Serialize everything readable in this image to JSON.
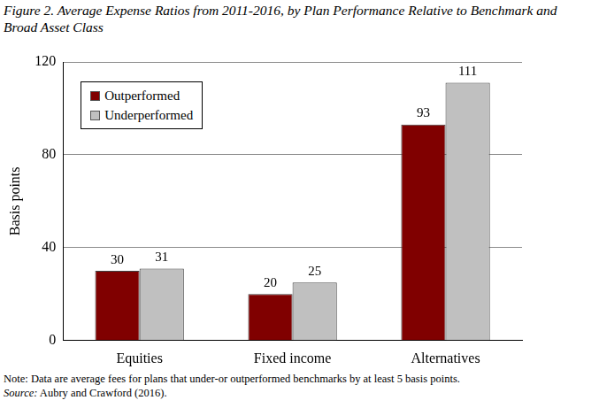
{
  "chart_data": {
    "type": "bar",
    "title": "Figure 2. Average Expense Ratios from 2011-2016, by Plan Performance Relative to Benchmark and Broad Asset Class",
    "y_label": "Basis points",
    "categories": [
      "Equities",
      "Fixed income",
      "Alternatives"
    ],
    "series": [
      {
        "name": "Outperformed",
        "color": "#800000",
        "values": [
          30,
          20,
          93
        ]
      },
      {
        "name": "Underperformed",
        "color": "#c0c0c0",
        "values": [
          31,
          25,
          111
        ]
      }
    ],
    "ylim": [
      0,
      120
    ],
    "yticks": [
      0,
      40,
      80,
      120
    ],
    "grid": true,
    "legend": "upper left",
    "data_labels": true,
    "annotations": [
      "Note: Data are average fees for plans that under-or outperformed benchmarks by at least 5 basis points.",
      "Source: Aubry and Crawford (2016)."
    ]
  }
}
